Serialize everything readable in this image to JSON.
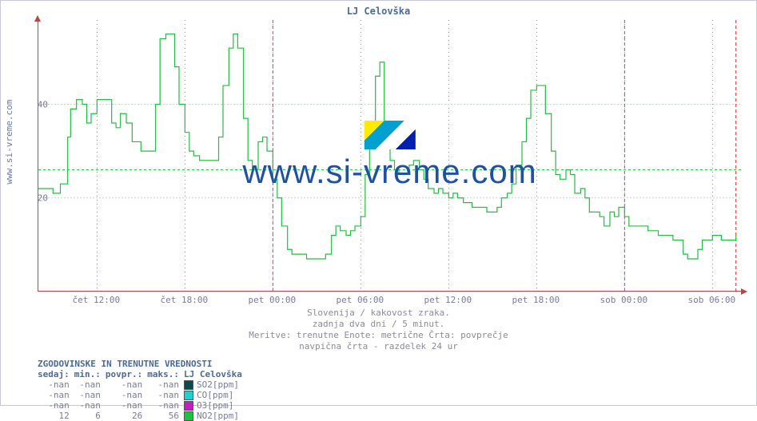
{
  "title": "LJ Celovška",
  "ylabel": "www.si-vreme.com",
  "watermark_text": "www.si-vreme.com",
  "chart": {
    "type": "line-step",
    "background_color": "#ffffff",
    "axis_color": "#b04040",
    "grid_major_color": "#c8d8c8",
    "grid_dash": "2,2",
    "ylim": [
      0,
      58
    ],
    "yticks": [
      20,
      40
    ],
    "ytick_labels": [
      "20",
      "40"
    ],
    "x_range_hours": 48,
    "xticks_hours": [
      4,
      10,
      16,
      22,
      28,
      34,
      40,
      46
    ],
    "xtick_labels": [
      "čet 12:00",
      "čet 18:00",
      "pet 00:00",
      "pet 06:00",
      "pet 12:00",
      "pet 18:00",
      "sob 00:00",
      "sob 06:00"
    ],
    "vert_grid_dotcolor": "#c00060",
    "day_markers_hours": [
      16,
      40
    ],
    "threshold_line": {
      "y": 26,
      "color": "#20c040",
      "dash": "3,3"
    },
    "end_marker_hour": 47.6,
    "series": [
      {
        "name": "NO2[ppm]",
        "color": "#20c040",
        "line_width": 1.2,
        "step": true,
        "points_hr_val": [
          [
            0,
            22
          ],
          [
            0.5,
            22
          ],
          [
            1,
            21
          ],
          [
            1.5,
            23
          ],
          [
            2,
            33
          ],
          [
            2.2,
            39
          ],
          [
            2.6,
            41
          ],
          [
            3,
            40
          ],
          [
            3.3,
            36
          ],
          [
            3.6,
            38
          ],
          [
            4,
            41
          ],
          [
            4.4,
            41
          ],
          [
            5,
            36
          ],
          [
            5.3,
            35
          ],
          [
            5.6,
            38
          ],
          [
            6,
            36
          ],
          [
            6.4,
            32
          ],
          [
            7,
            30
          ],
          [
            7.5,
            30
          ],
          [
            8,
            40
          ],
          [
            8.3,
            54
          ],
          [
            8.7,
            55
          ],
          [
            9,
            55
          ],
          [
            9.3,
            48
          ],
          [
            9.6,
            40
          ],
          [
            10,
            34
          ],
          [
            10.3,
            30
          ],
          [
            10.6,
            29
          ],
          [
            11,
            28
          ],
          [
            11.5,
            28
          ],
          [
            12,
            28
          ],
          [
            12.3,
            33
          ],
          [
            12.6,
            44
          ],
          [
            13,
            52
          ],
          [
            13.3,
            55
          ],
          [
            13.6,
            52
          ],
          [
            14,
            37
          ],
          [
            14.3,
            28
          ],
          [
            14.6,
            26
          ],
          [
            15,
            32
          ],
          [
            15.3,
            33
          ],
          [
            15.6,
            30
          ],
          [
            16,
            24
          ],
          [
            16.3,
            20
          ],
          [
            16.6,
            14
          ],
          [
            17,
            9
          ],
          [
            17.3,
            8
          ],
          [
            17.6,
            8
          ],
          [
            18,
            8
          ],
          [
            18.3,
            7
          ],
          [
            18.6,
            7
          ],
          [
            19,
            7
          ],
          [
            19.3,
            7
          ],
          [
            19.6,
            8
          ],
          [
            20,
            12
          ],
          [
            20.3,
            14
          ],
          [
            20.6,
            13
          ],
          [
            21,
            12
          ],
          [
            21.3,
            13
          ],
          [
            21.6,
            14
          ],
          [
            22,
            16
          ],
          [
            22.3,
            25
          ],
          [
            22.6,
            35
          ],
          [
            23,
            46
          ],
          [
            23.3,
            49
          ],
          [
            23.6,
            35
          ],
          [
            24,
            28
          ],
          [
            24.3,
            26
          ],
          [
            24.6,
            25
          ],
          [
            25,
            25
          ],
          [
            25.3,
            27
          ],
          [
            25.6,
            28
          ],
          [
            26,
            26
          ],
          [
            26.3,
            24
          ],
          [
            26.6,
            22
          ],
          [
            27,
            21
          ],
          [
            27.3,
            22
          ],
          [
            27.6,
            21
          ],
          [
            28,
            20
          ],
          [
            28.3,
            21
          ],
          [
            28.6,
            20
          ],
          [
            29,
            19
          ],
          [
            29.3,
            19
          ],
          [
            29.6,
            18
          ],
          [
            30,
            18
          ],
          [
            30.3,
            18
          ],
          [
            30.6,
            17
          ],
          [
            31,
            17
          ],
          [
            31.3,
            18
          ],
          [
            31.6,
            20
          ],
          [
            32,
            21
          ],
          [
            32.3,
            23
          ],
          [
            32.6,
            27
          ],
          [
            33,
            32
          ],
          [
            33.3,
            37
          ],
          [
            33.6,
            43
          ],
          [
            34,
            44
          ],
          [
            34.3,
            44
          ],
          [
            34.6,
            38
          ],
          [
            35,
            30
          ],
          [
            35.3,
            25
          ],
          [
            35.6,
            24
          ],
          [
            36,
            26
          ],
          [
            36.3,
            25
          ],
          [
            36.6,
            21
          ],
          [
            37,
            22
          ],
          [
            37.3,
            20
          ],
          [
            37.6,
            17
          ],
          [
            38,
            17
          ],
          [
            38.3,
            16
          ],
          [
            38.6,
            14
          ],
          [
            39,
            17
          ],
          [
            39.3,
            16
          ],
          [
            39.6,
            18
          ],
          [
            40,
            16
          ],
          [
            40.3,
            14
          ],
          [
            40.6,
            14
          ],
          [
            41,
            14
          ],
          [
            41.3,
            14
          ],
          [
            41.6,
            13
          ],
          [
            42,
            13
          ],
          [
            42.3,
            12
          ],
          [
            42.6,
            12
          ],
          [
            43,
            12
          ],
          [
            43.3,
            11
          ],
          [
            43.6,
            11
          ],
          [
            44,
            8
          ],
          [
            44.3,
            7
          ],
          [
            44.6,
            7
          ],
          [
            45,
            9
          ],
          [
            45.3,
            11
          ],
          [
            45.6,
            11
          ],
          [
            46,
            12
          ],
          [
            46.3,
            12
          ],
          [
            46.6,
            11
          ],
          [
            47,
            11
          ],
          [
            47.3,
            11
          ],
          [
            47.6,
            12
          ]
        ]
      }
    ]
  },
  "captions": [
    "Slovenija / kakovost zraka.",
    "zadnja dva dni / 5 minut.",
    "Meritve: trenutne  Enote: metrične  Črta: povprečje",
    "navpična črta - razdelek 24 ur"
  ],
  "legend": {
    "title": "ZGODOVINSKE IN TRENUTNE VREDNOSTI",
    "columns": [
      "sedaj:",
      "min.:",
      "povpr.:",
      "maks.:"
    ],
    "series_header": "LJ Celovška",
    "rows": [
      {
        "vals": [
          "-nan",
          "-nan",
          "-nan",
          "-nan"
        ],
        "swatch": "#0a4a4a",
        "label": "SO2[ppm]"
      },
      {
        "vals": [
          "-nan",
          "-nan",
          "-nan",
          "-nan"
        ],
        "swatch": "#20d0d0",
        "label": "CO[ppm]"
      },
      {
        "vals": [
          "-nan",
          "-nan",
          "-nan",
          "-nan"
        ],
        "swatch": "#c020c0",
        "label": "O3[ppm]"
      },
      {
        "vals": [
          "12",
          "6",
          "26",
          "56"
        ],
        "swatch": "#20c040",
        "label": "NO2[ppm]"
      }
    ]
  }
}
